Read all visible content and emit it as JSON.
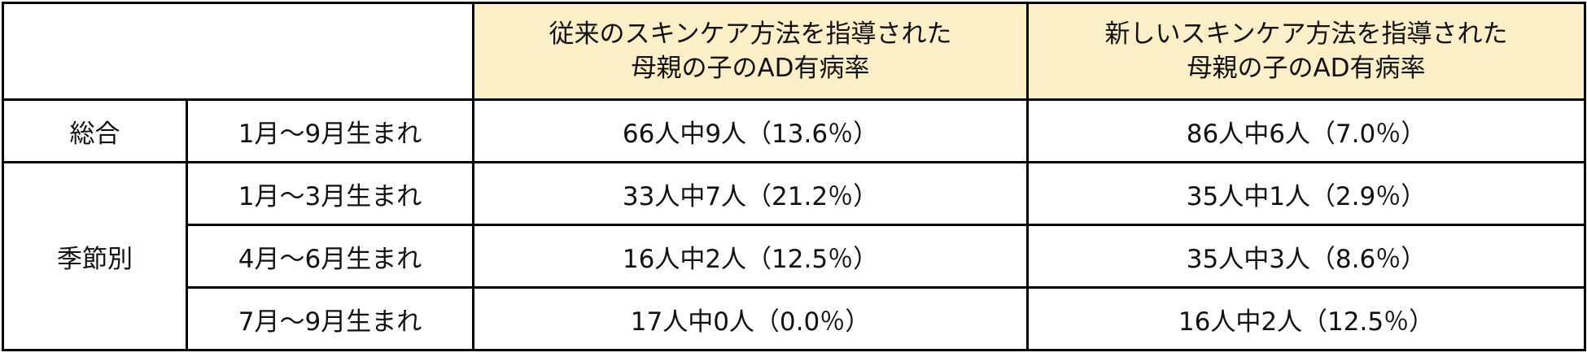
{
  "table": {
    "header": [
      [
        "従来のスキンケア方法を指導された",
        "母親の子のAD有病率"
      ],
      [
        "新しいスキンケア方法を指導された",
        "母親の子のAD有病率"
      ]
    ],
    "groups": [
      {
        "label": "総合",
        "rows": [
          [
            "1月～9月生まれ",
            "66人中9人（13.6％）",
            "86人中6人（7.0％）"
          ]
        ]
      },
      {
        "label": "季節別",
        "rows": [
          [
            "1月～3月生まれ",
            "33人中7人（21.2％）",
            "35人中1人（2.9％）"
          ],
          [
            "4月～6月生まれ",
            "16人中2人（12.5％）",
            "35人中3人（8.6％）"
          ],
          [
            "7月～9月生まれ",
            "17人中0人（0.0％）",
            "16人中2人（12.5％）"
          ]
        ]
      }
    ]
  }
}
